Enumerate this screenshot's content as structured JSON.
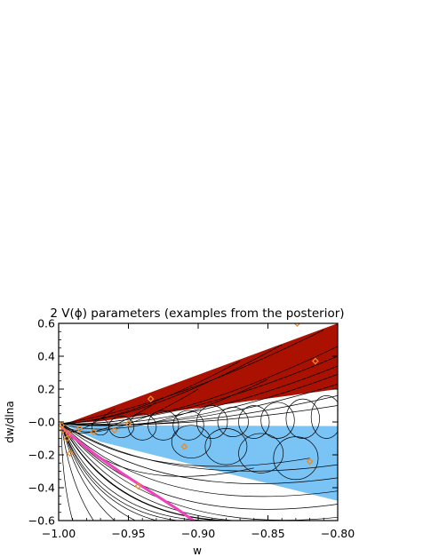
{
  "chart_data": {
    "type": "line",
    "title": "2 V(ϕ) parameters (examples from the posterior)",
    "xlabel": "w",
    "ylabel": "dw/dlna",
    "xlim": [
      -1.0,
      -0.8
    ],
    "ylim": [
      -0.6,
      0.6
    ],
    "xticks": [
      "−1.00",
      "−0.95",
      "−0.90",
      "−0.85",
      "−0.80"
    ],
    "yticks": [
      "0.6",
      "0.4",
      "0.2",
      "−0.0",
      "−0.2",
      "−0.4",
      "−0.6"
    ],
    "xtick_values": [
      -1.0,
      -0.95,
      -0.9,
      -0.85,
      -0.8
    ],
    "ytick_values": [
      0.6,
      0.4,
      0.2,
      0.0,
      -0.2,
      -0.4,
      -0.6
    ],
    "grid": false,
    "colors": {
      "thawing_region": "#aa1100",
      "freezing_region": "#7ac3f5",
      "trajectories": "#000000",
      "highlight_trajectory": "#ee44bb",
      "markers": "#ee8822"
    },
    "regions": [
      {
        "id": "red",
        "polygon": [
          [
            -0.995,
            -0.01
          ],
          [
            -0.8,
            0.6
          ],
          [
            -0.8,
            0.2
          ],
          [
            -0.97,
            0.005
          ]
        ]
      },
      {
        "id": "blue",
        "polygon": [
          [
            -0.995,
            -0.02
          ],
          [
            -0.8,
            -0.025
          ],
          [
            -0.8,
            -0.48
          ],
          [
            -0.97,
            -0.12
          ]
        ]
      }
    ],
    "highlight_series": {
      "x": [
        -0.998,
        -0.99,
        -0.975,
        -0.955,
        -0.935,
        -0.915,
        -0.9
      ],
      "y": [
        -0.03,
        -0.09,
        -0.19,
        -0.31,
        -0.42,
        -0.53,
        -0.62
      ]
    },
    "curves_up": [
      {
        "end": [
          -0.81,
          0.56
        ],
        "bend": 0.04
      },
      {
        "end": [
          -0.84,
          0.47
        ],
        "bend": 0.05
      },
      {
        "end": [
          -0.87,
          0.37
        ],
        "bend": 0.04
      },
      {
        "end": [
          -0.8,
          0.46
        ],
        "bend": 0.06
      },
      {
        "end": [
          -0.8,
          0.4
        ],
        "bend": 0.05
      },
      {
        "end": [
          -0.8,
          0.34
        ],
        "bend": 0.05
      },
      {
        "end": [
          -0.8,
          0.29
        ],
        "bend": 0.05
      },
      {
        "end": [
          -0.8,
          0.23
        ],
        "bend": 0.04
      },
      {
        "end": [
          -0.85,
          0.26
        ],
        "bend": 0.06
      },
      {
        "end": [
          -0.9,
          0.2
        ],
        "bend": 0.06
      },
      {
        "end": [
          -0.93,
          0.12
        ],
        "bend": 0.05
      },
      {
        "end": [
          -0.96,
          0.08
        ],
        "bend": 0.04
      },
      {
        "end": [
          -0.8,
          0.16
        ],
        "bend": 0.03
      },
      {
        "end": [
          -0.8,
          0.1
        ],
        "bend": 0.02
      }
    ],
    "curves_down": [
      {
        "end": [
          -0.99,
          -0.6
        ],
        "bend": 0.01
      },
      {
        "end": [
          -0.975,
          -0.6
        ],
        "bend": 0.015
      },
      {
        "end": [
          -0.96,
          -0.6
        ],
        "bend": 0.02
      },
      {
        "end": [
          -0.945,
          -0.6
        ],
        "bend": 0.03
      },
      {
        "end": [
          -0.93,
          -0.6
        ],
        "bend": 0.04
      },
      {
        "end": [
          -0.915,
          -0.6
        ],
        "bend": 0.05
      },
      {
        "end": [
          -0.895,
          -0.6
        ],
        "bend": 0.06
      },
      {
        "end": [
          -0.88,
          -0.6
        ],
        "bend": 0.06
      },
      {
        "end": [
          -0.865,
          -0.6
        ],
        "bend": 0.07
      },
      {
        "end": [
          -0.85,
          -0.6
        ],
        "bend": 0.08
      },
      {
        "end": [
          -0.835,
          -0.6
        ],
        "bend": 0.08
      },
      {
        "end": [
          -0.8,
          -0.58
        ],
        "bend": 0.09
      },
      {
        "end": [
          -0.8,
          -0.5
        ],
        "bend": 0.09
      },
      {
        "end": [
          -0.8,
          -0.42
        ],
        "bend": 0.08
      },
      {
        "end": [
          -0.8,
          -0.34
        ],
        "bend": 0.07
      },
      {
        "end": [
          -0.8,
          -0.26
        ],
        "bend": 0.06
      },
      {
        "end": [
          -0.82,
          -0.22
        ],
        "bend": 0.06
      },
      {
        "end": [
          -0.86,
          -0.28
        ],
        "bend": 0.07
      }
    ],
    "loops": [
      {
        "x": -0.97,
        "y": -0.03,
        "rx": 0.006,
        "ry": 0.05
      },
      {
        "x": -0.955,
        "y": -0.03,
        "rx": 0.009,
        "ry": 0.065
      },
      {
        "x": -0.94,
        "y": -0.03,
        "rx": 0.01,
        "ry": 0.08
      },
      {
        "x": -0.925,
        "y": -0.02,
        "rx": 0.011,
        "ry": 0.09
      },
      {
        "x": -0.907,
        "y": -0.02,
        "rx": 0.011,
        "ry": 0.09
      },
      {
        "x": -0.89,
        "y": 0.0,
        "rx": 0.011,
        "ry": 0.1
      },
      {
        "x": -0.875,
        "y": 0.0,
        "rx": 0.011,
        "ry": 0.09
      },
      {
        "x": -0.86,
        "y": 0.0,
        "rx": 0.011,
        "ry": 0.1
      },
      {
        "x": -0.843,
        "y": 0.01,
        "rx": 0.012,
        "ry": 0.11
      },
      {
        "x": -0.825,
        "y": 0.02,
        "rx": 0.012,
        "ry": 0.12
      },
      {
        "x": -0.808,
        "y": 0.03,
        "rx": 0.011,
        "ry": 0.13
      },
      {
        "x": -0.905,
        "y": -0.12,
        "rx": 0.014,
        "ry": 0.1
      },
      {
        "x": -0.88,
        "y": -0.15,
        "rx": 0.015,
        "ry": 0.11
      },
      {
        "x": -0.855,
        "y": -0.19,
        "rx": 0.016,
        "ry": 0.12
      },
      {
        "x": -0.83,
        "y": -0.22,
        "rx": 0.016,
        "ry": 0.13
      }
    ],
    "markers": [
      [
        -0.829,
        0.6
      ],
      [
        -0.816,
        0.37
      ],
      [
        -0.934,
        0.14
      ],
      [
        -0.91,
        -0.15
      ],
      [
        -0.82,
        -0.24
      ],
      [
        -0.943,
        -0.39
      ],
      [
        -0.992,
        -0.19
      ],
      [
        -0.994,
        -0.1
      ],
      [
        -0.975,
        -0.06
      ],
      [
        -0.96,
        -0.05
      ],
      [
        -0.95,
        -0.01
      ],
      [
        -0.998,
        -0.02
      ],
      [
        -0.997,
        -0.05
      ],
      [
        -0.993,
        -0.07
      ],
      [
        -0.985,
        -0.04
      ]
    ]
  }
}
